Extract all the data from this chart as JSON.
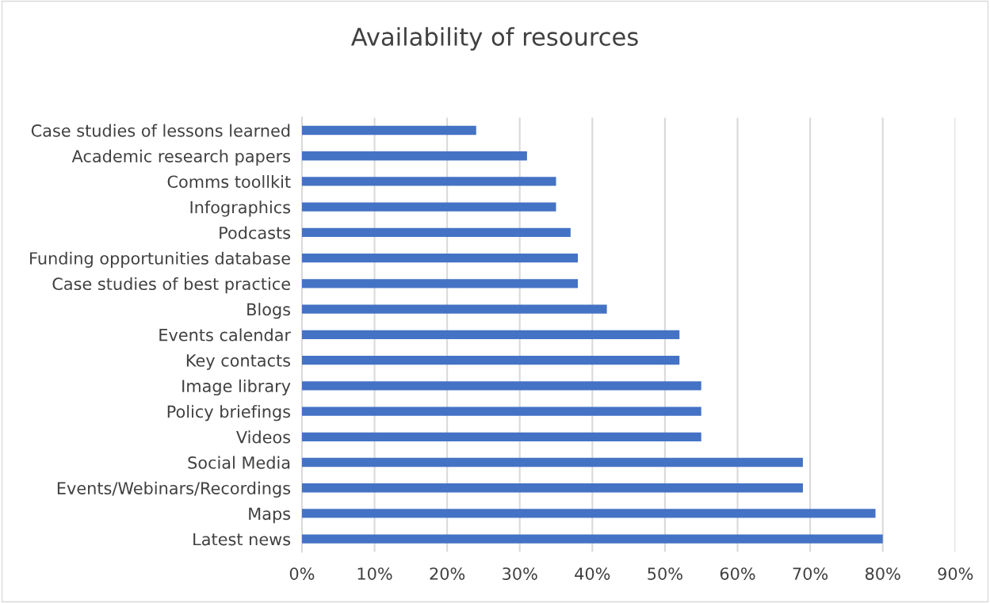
{
  "chart_data": {
    "type": "bar",
    "orientation": "horizontal",
    "title": "Availability of resources",
    "categories": [
      "Case studies of lessons learned",
      "Academic research papers",
      "Comms toollkit",
      "Infographics",
      "Podcasts",
      "Funding opportunities database",
      "Case studies of best practice",
      "Blogs",
      "Events calendar",
      "Key contacts",
      "Image library",
      "Policy briefings",
      "Videos",
      "Social Media",
      "Events/Webinars/Recordings",
      "Maps",
      "Latest news"
    ],
    "values": [
      24,
      31,
      35,
      35,
      37,
      38,
      38,
      42,
      52,
      52,
      55,
      55,
      55,
      69,
      69,
      79,
      80
    ],
    "color": "#4472c4",
    "xlim": [
      0,
      90
    ],
    "xticks": [
      {
        "value": 0,
        "label": "0%"
      },
      {
        "value": 10,
        "label": "10%"
      },
      {
        "value": 20,
        "label": "20%"
      },
      {
        "value": 30,
        "label": "30%"
      },
      {
        "value": 40,
        "label": "40%"
      },
      {
        "value": 50,
        "label": "50%"
      },
      {
        "value": 60,
        "label": "60%"
      },
      {
        "value": 70,
        "label": "70%"
      },
      {
        "value": 80,
        "label": "80%"
      },
      {
        "value": 90,
        "label": "90%"
      }
    ],
    "grid": "x",
    "legend": false
  }
}
